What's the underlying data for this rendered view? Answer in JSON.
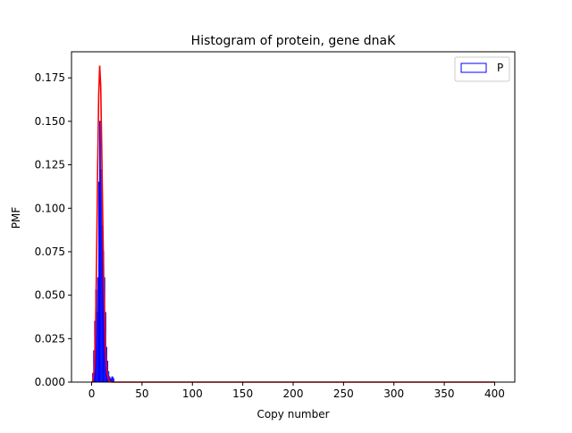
{
  "chart_data": {
    "type": "bar",
    "title": "Histogram of protein, gene dnaK",
    "xlabel": "Copy number",
    "ylabel": "PMF",
    "xlim": [
      -20,
      420
    ],
    "ylim": [
      0,
      0.19
    ],
    "xticks": [
      0,
      50,
      100,
      150,
      200,
      250,
      300,
      350,
      400
    ],
    "yticks": [
      0.0,
      0.025,
      0.05,
      0.075,
      0.1,
      0.125,
      0.15,
      0.175
    ],
    "xtick_labels": [
      "0",
      "50",
      "100",
      "150",
      "200",
      "250",
      "300",
      "350",
      "400"
    ],
    "ytick_labels": [
      "0.000",
      "0.025",
      "0.050",
      "0.075",
      "0.100",
      "0.125",
      "0.150",
      "0.175"
    ],
    "grid": false,
    "legend": {
      "placement": "top-right",
      "entries": [
        "P"
      ]
    },
    "histogram": {
      "name": "P",
      "color": "#0000ff",
      "bin_width": 1,
      "bin_starts": [
        1,
        2,
        3,
        4,
        5,
        6,
        7,
        8,
        9,
        10,
        11,
        12,
        13,
        14,
        15,
        16,
        17,
        18,
        19,
        20,
        21
      ],
      "values": [
        0.005,
        0.018,
        0.035,
        0.053,
        0.04,
        0.06,
        0.115,
        0.15,
        0.122,
        0.09,
        0.075,
        0.06,
        0.04,
        0.02,
        0.012,
        0.006,
        0.003,
        0.002,
        0.001,
        0.003,
        0.002
      ]
    },
    "fit_curve": {
      "color": "#ff0000",
      "x": [
        0,
        1,
        2,
        3,
        4,
        5,
        6,
        7,
        8,
        9,
        10,
        11,
        12,
        13,
        14,
        15,
        16,
        17,
        18,
        19,
        20,
        25,
        30,
        35,
        40,
        50,
        100,
        150,
        200,
        250,
        300,
        350,
        400
      ],
      "y": [
        0.0,
        0.0005,
        0.003,
        0.012,
        0.035,
        0.075,
        0.125,
        0.165,
        0.182,
        0.17,
        0.135,
        0.095,
        0.058,
        0.032,
        0.016,
        0.007,
        0.003,
        0.001,
        0.0005,
        0.0002,
        0.0,
        0.0,
        0.0,
        0.0,
        0.0,
        0.0,
        0.0,
        0.0,
        0.0,
        0.0,
        0.0,
        0.0,
        0.0
      ]
    }
  }
}
